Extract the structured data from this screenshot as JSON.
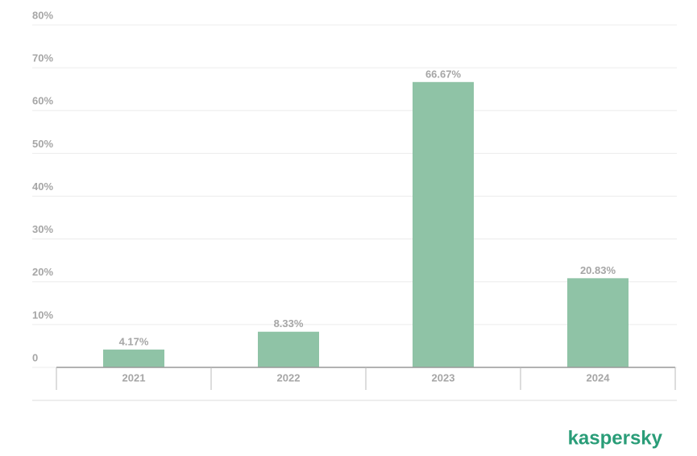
{
  "chart_data": {
    "type": "bar",
    "categories": [
      "2021",
      "2022",
      "2023",
      "2024"
    ],
    "values": [
      4.17,
      8.33,
      66.67,
      20.83
    ],
    "value_labels": [
      "4.17%",
      "8.33%",
      "66.67%",
      "20.83%"
    ],
    "color": "#8fc3a6",
    "ylim": [
      0,
      80
    ],
    "yticks": [
      0,
      {
        "value": 10,
        "label": "10%"
      },
      {
        "value": 20,
        "label": "20%"
      },
      {
        "value": 30,
        "label": "30%"
      },
      {
        "value": 40,
        "label": "40%"
      },
      {
        "value": 50,
        "label": "50%"
      },
      {
        "value": 60,
        "label": "60%"
      },
      {
        "value": 70,
        "label": "70%"
      },
      {
        "value": 80,
        "label": "80%"
      }
    ],
    "grid": true
  },
  "brand": "kaspersky"
}
